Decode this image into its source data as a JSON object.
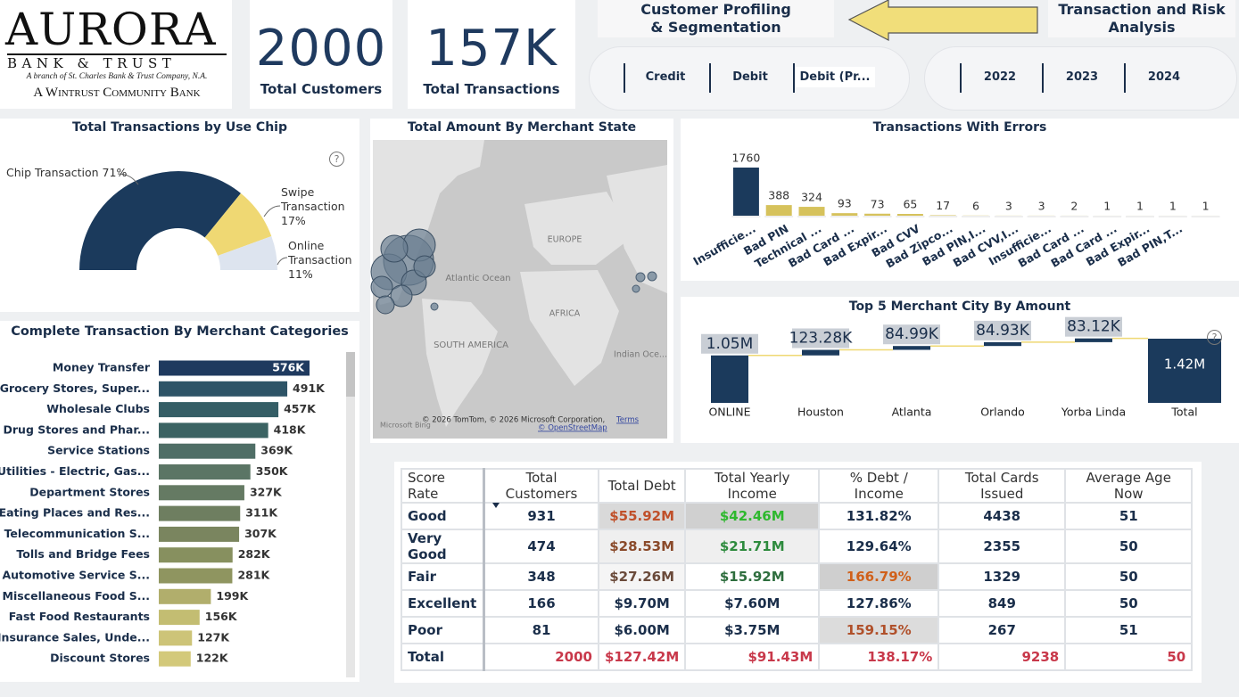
{
  "logo": {
    "name": "AURORA",
    "line": "BANK & TRUST",
    "tagline": "A branch of St. Charles Bank & Trust Company, N.A.",
    "parent": "A Wintrust Community Bank"
  },
  "kpis": [
    {
      "value": "2000",
      "label": "Total Customers"
    },
    {
      "value": "157K",
      "label": "Total Transactions"
    }
  ],
  "nav": {
    "current": "Customer Profiling & Segmentation",
    "next": "Transaction and Risk Analysis"
  },
  "slicers": [
    [
      "Credit",
      "Debit",
      "Debit (Pr..."
    ],
    [
      "2022",
      "2023",
      "2024"
    ]
  ],
  "chart_data": [
    {
      "type": "pie",
      "style": "half-donut",
      "title": "Total Transactions by Use Chip",
      "categories": [
        "Chip Transaction",
        "Swipe Transaction",
        "Online Transaction"
      ],
      "values": [
        71,
        17,
        11
      ],
      "value_labels": [
        "71%",
        "17%",
        "11%"
      ],
      "colors": [
        "#1b3a5c",
        "#efd873",
        "#dde4ef"
      ]
    },
    {
      "type": "map",
      "title": "Total Amount By Merchant State",
      "labels": [
        "EUROPE",
        "Atlantic Ocean",
        "AFRICA",
        "SOUTH AMERICA",
        "Indian Oce..."
      ],
      "attribution": [
        "© 2026 TomTom, © 2026 Microsoft Corporation,",
        "Terms",
        "© OpenStreetMap"
      ],
      "provider": "Microsoft Bing"
    },
    {
      "type": "bar",
      "title": "Transactions With Errors",
      "categories": [
        "Insufficie...",
        "Bad PIN",
        "Technical ...",
        "Bad Card ...",
        "Bad Expir...",
        "Bad CVV",
        "Bad Zipco...",
        "Bad PIN,I...",
        "Bad CVV,I...",
        "Insufficie...",
        "Bad Card ...",
        "Bad Card ...",
        "Bad Expir...",
        "Bad PIN,T...",
        null
      ],
      "values": [
        1760,
        388,
        324,
        93,
        73,
        65,
        17,
        6,
        3,
        3,
        2,
        1,
        1,
        1,
        1
      ],
      "colors": [
        "#1b3a5c",
        "#d6c25c",
        "#d6c25c",
        "#d6c25c",
        "#d6c25c",
        "#d6c25c",
        "#d6c25c",
        "#d6c25c",
        "#d6c25c",
        "#d6c25c",
        "#d6c25c",
        "#d6c25c",
        "#d6c25c",
        "#d6c25c",
        "#d6c25c"
      ]
    },
    {
      "type": "waterfall",
      "title": "Top 5 Merchant City By Amount",
      "categories": [
        "ONLINE",
        "Houston",
        "Atlanta",
        "Orlando",
        "Yorba Linda",
        "Total"
      ],
      "values": [
        1050000,
        123280,
        84990,
        84930,
        83120,
        1420000
      ],
      "value_labels": [
        "1.05M",
        "123.28K",
        "84.99K",
        "84.93K",
        "83.12K",
        "1.42M"
      ],
      "total_last": true,
      "color": "#1b3a5c",
      "connector_color": "#efd873"
    },
    {
      "type": "hbar",
      "title": "Complete Transaction By Merchant Categories",
      "categories": [
        "Money Transfer",
        "Grocery Stores, Super...",
        "Wholesale Clubs",
        "Drug Stores and Phar...",
        "Service Stations",
        "Utilities - Electric, Gas...",
        "Department Stores",
        "Eating Places and Res...",
        "Telecommunication S...",
        "Tolls and Bridge Fees",
        "Automotive Service S...",
        "Miscellaneous Food S...",
        "Fast Food Restaurants",
        "Insurance Sales, Unde...",
        "Discount Stores"
      ],
      "values": [
        576000,
        491000,
        457000,
        418000,
        369000,
        350000,
        327000,
        311000,
        307000,
        282000,
        281000,
        199000,
        156000,
        127000,
        122000
      ],
      "value_labels": [
        "576K",
        "491K",
        "457K",
        "418K",
        "369K",
        "350K",
        "327K",
        "311K",
        "307K",
        "282K",
        "281K",
        "199K",
        "156K",
        "127K",
        "122K"
      ],
      "colors": [
        "#1f3a5f",
        "#2e5467",
        "#355e66",
        "#3b6363",
        "#4f6e66",
        "#5b7565",
        "#657a63",
        "#6e7e60",
        "#7a855f",
        "#87905f",
        "#8f9560",
        "#b1ae6c",
        "#c3bd72",
        "#cdc478",
        "#d3c97a"
      ]
    }
  ],
  "table": {
    "headers": [
      "Score Rate",
      "Total Customers",
      "Total Debt",
      "Total Yearly Income",
      "% Debt / Income",
      "Total Cards Issued",
      "Average Age Now"
    ],
    "rows": [
      [
        "Good",
        "931",
        "$55.92M",
        "$42.46M",
        "131.82%",
        "4438",
        "51"
      ],
      [
        "Very Good",
        "474",
        "$28.53M",
        "$21.71M",
        "129.64%",
        "2355",
        "50"
      ],
      [
        "Fair",
        "348",
        "$27.26M",
        "$15.92M",
        "166.79%",
        "1329",
        "50"
      ],
      [
        "Excellent",
        "166",
        "$9.70M",
        "$7.60M",
        "127.86%",
        "849",
        "50"
      ],
      [
        "Poor",
        "81",
        "$6.00M",
        "$3.75M",
        "159.15%",
        "267",
        "51"
      ],
      [
        "Total",
        "2000",
        "$127.42M",
        "$91.43M",
        "138.17%",
        "9238",
        "50"
      ]
    ]
  }
}
